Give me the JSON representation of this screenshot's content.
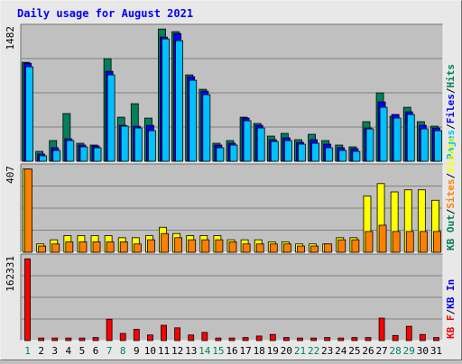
{
  "chart_data": {
    "title": "Daily usage for August 2021",
    "days": [
      "1",
      "2",
      "3",
      "4",
      "5",
      "6",
      "7",
      "8",
      "9",
      "10",
      "11",
      "12",
      "13",
      "14",
      "15",
      "16",
      "17",
      "18",
      "19",
      "20",
      "21",
      "22",
      "23",
      "24",
      "25",
      "26",
      "27",
      "28",
      "29",
      "30",
      "31"
    ],
    "weekend_days": [
      "1",
      "7",
      "8",
      "14",
      "15",
      "21",
      "22",
      "28",
      "29"
    ],
    "colors": {
      "background": "#e8e8e8",
      "plot": "#c0c0c0",
      "hits": "#00805c",
      "files": "#0000ff",
      "pages": "#00c0ff",
      "visits": "#ffff00",
      "sites": "#ff8000",
      "kb_out": "#00805c",
      "kb_in": "#0000ff",
      "kb_f": "#ff0000",
      "title": "#0000ff",
      "weekday_label": "#000000",
      "weekend_label": "#00805c"
    },
    "panels": [
      {
        "type": "bar",
        "max_label": "1482",
        "ylim": [
          0,
          1482
        ],
        "legend": [
          {
            "label": "Hits",
            "color": "#00805c"
          },
          {
            "label": "Files",
            "color": "#0000ff"
          },
          {
            "label": "Pages",
            "color": "#00c0ff"
          }
        ],
        "series": [
          {
            "name": "Hits",
            "values": [
              1100,
              110,
              230,
              530,
              200,
              180,
              1140,
              490,
              640,
              480,
              1470,
              1440,
              960,
              800,
              200,
              230,
              490,
              420,
              280,
              310,
              240,
              300,
              230,
              180,
              160,
              440,
              760,
              500,
              600,
              440,
              390
            ]
          },
          {
            "name": "Files",
            "values": [
              1090,
              80,
              150,
              250,
              180,
              170,
              1000,
              400,
              390,
              400,
              1380,
              1420,
              940,
              780,
              180,
              200,
              480,
              400,
              240,
              260,
              210,
              240,
              190,
              150,
              140,
              370,
              660,
              520,
              550,
              400,
              370
            ]
          },
          {
            "name": "Pages",
            "values": [
              1050,
              60,
              120,
              230,
              160,
              150,
              960,
              390,
              370,
              340,
              1360,
              1340,
              900,
              740,
              150,
              180,
              450,
              370,
              220,
              230,
              190,
              200,
              150,
              120,
              110,
              360,
              600,
              480,
              520,
              360,
              340
            ]
          }
        ]
      },
      {
        "type": "bar",
        "max_label": "407",
        "ylim": [
          0,
          407
        ],
        "legend": [
          {
            "label": "Visits",
            "color": "#ffff00"
          },
          {
            "label": "Sites",
            "color": "#ff8000"
          },
          {
            "label": "KB Out",
            "color": "#00805c"
          }
        ],
        "series": [
          {
            "name": "Visits",
            "values": [
              400,
              40,
              60,
              80,
              80,
              80,
              80,
              70,
              70,
              80,
              120,
              90,
              80,
              80,
              80,
              60,
              60,
              60,
              50,
              50,
              40,
              40,
              40,
              70,
              70,
              270,
              330,
              290,
              300,
              300,
              250
            ]
          },
          {
            "name": "Sites",
            "values": [
              400,
              30,
              40,
              50,
              50,
              50,
              50,
              50,
              40,
              60,
              90,
              70,
              60,
              60,
              60,
              50,
              40,
              40,
              40,
              40,
              30,
              30,
              40,
              60,
              60,
              100,
              130,
              100,
              100,
              100,
              100
            ]
          }
        ]
      },
      {
        "type": "bar",
        "max_label": "162331",
        "ylim": [
          0,
          162331
        ],
        "legend": [
          {
            "label": "KB In",
            "color": "#0000ff"
          },
          {
            "label": "KB F",
            "color": "#ff0000"
          }
        ],
        "series": [
          {
            "name": "KB F",
            "values": [
              160000,
              5000,
              5000,
              5000,
              5000,
              6000,
              42000,
              14000,
              22000,
              11000,
              30000,
              25000,
              11000,
              16000,
              5000,
              5000,
              6000,
              9000,
              12000,
              6000,
              5000,
              5000,
              6000,
              5000,
              6000,
              6000,
              44000,
              10000,
              28000,
              12000,
              6000
            ]
          }
        ]
      }
    ]
  }
}
